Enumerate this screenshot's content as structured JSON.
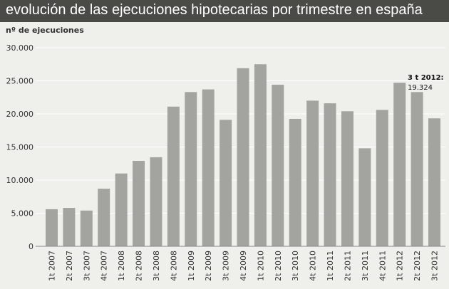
{
  "chart_data": {
    "type": "bar",
    "title": "evolución de las ejecuciones hipotecarias por trimestre en españa",
    "ylabel": "nº de ejecuciones",
    "xlabel": "",
    "ylim": [
      0,
      30000
    ],
    "yticks": [
      0,
      5000,
      10000,
      15000,
      20000,
      25000,
      30000
    ],
    "ytick_labels": [
      "0",
      "5.000",
      "10.000",
      "15.000",
      "20.000",
      "25.000",
      "30.000"
    ],
    "grid": "horizontal",
    "bar_color": "#a3a4a0",
    "categories": [
      "1t 2007",
      "2t 2007",
      "3t 2007",
      "4t 2007",
      "1t 2008",
      "2t 2008",
      "3t 2008",
      "4t 2008",
      "1t 2009",
      "2t 2009",
      "3t 2009",
      "4t 2009",
      "1t 2010",
      "2t 2010",
      "3t 2010",
      "4t 2010",
      "1t 2011",
      "2t 2011",
      "3t 2011",
      "4t 2011",
      "1t 2012",
      "2t 2012",
      "3t 2012"
    ],
    "values": [
      5600,
      5800,
      5400,
      8700,
      11000,
      12900,
      13450,
      21100,
      23300,
      23700,
      19100,
      26900,
      27500,
      24400,
      19250,
      22000,
      21600,
      20400,
      14800,
      20600,
      24700,
      23300,
      19324
    ],
    "annotation": {
      "label": "3 t 2012:",
      "value": "19.324",
      "category": "3t 2012"
    }
  }
}
